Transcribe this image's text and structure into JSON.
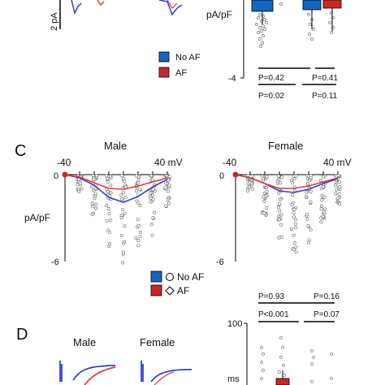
{
  "panel_b": {
    "scale_label": "2 pA",
    "legend": {
      "no_af": "No AF",
      "af": "AF"
    },
    "ylabel": "pA/pF",
    "ytick_bottom": "-4",
    "stats": [
      {
        "left": "P=0.42",
        "right": "P=0.41"
      },
      {
        "left": "P=0.02",
        "right": "P=0.11"
      }
    ]
  },
  "panel_c": {
    "letter": "C",
    "male": {
      "title": "Male",
      "x_left": "-40",
      "x_right": "40 mV",
      "y_zero": "0",
      "ylabel": "pA/pF",
      "y_bottom": "-6"
    },
    "female": {
      "title": "Female",
      "x_left": "-40",
      "x_right": "40 mV",
      "y_zero": "0",
      "y_bottom": "-6"
    },
    "legend": {
      "no_af": "No AF",
      "af": "AF"
    }
  },
  "panel_d": {
    "letter": "D",
    "male_title": "Male",
    "female_title": "Female",
    "stats": [
      {
        "left": "P=0.93",
        "right": "P=0.16"
      },
      {
        "left": "P<0.001",
        "right": "P=0.07"
      }
    ],
    "ytick_top": "100",
    "ylabel": "ms"
  },
  "colors": {
    "no_af": "#1565c0",
    "af": "#c62828",
    "blue_line": "#2f3fd6",
    "red_line": "#e53935"
  }
}
